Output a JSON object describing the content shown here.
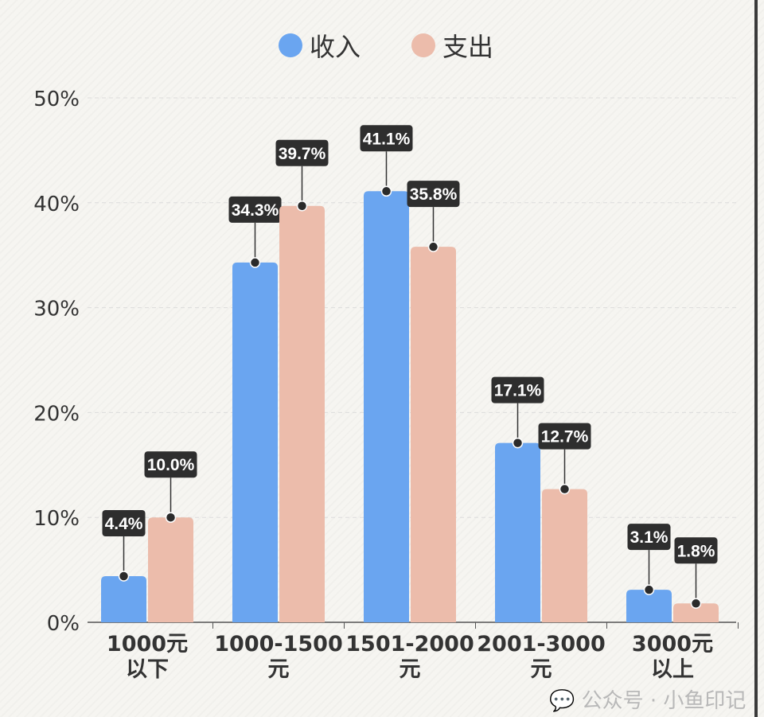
{
  "chart_data": {
    "type": "bar",
    "categories": [
      [
        "1000元",
        "以下"
      ],
      [
        "1000-1500",
        "元"
      ],
      [
        "1501-2000",
        "元"
      ],
      [
        "2001-3000",
        "元"
      ],
      [
        "3000元",
        "以上"
      ]
    ],
    "series": [
      {
        "name": "收入",
        "color": "#6aa5f0",
        "values": [
          4.4,
          34.3,
          41.1,
          17.1,
          3.1
        ],
        "labels": [
          "4.4%",
          "34.3%",
          "41.1%",
          "17.1%",
          "3.1%"
        ]
      },
      {
        "name": "支出",
        "color": "#ecbcab",
        "values": [
          10.0,
          39.7,
          35.8,
          12.7,
          1.8
        ],
        "labels": [
          "10.0%",
          "39.7%",
          "35.8%",
          "12.7%",
          "1.8%"
        ]
      }
    ],
    "yticks": [
      "0%",
      "10%",
      "20%",
      "30%",
      "40%",
      "50%"
    ],
    "ylim": [
      0,
      50
    ],
    "grid": true,
    "legend": "top-center"
  },
  "watermark": "公众号 · 小鱼印记"
}
